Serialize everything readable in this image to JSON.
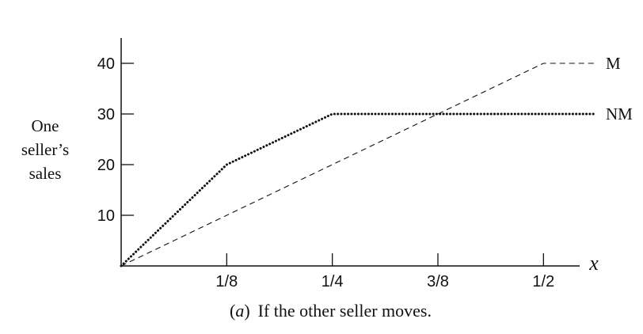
{
  "chart_data": {
    "type": "line",
    "ylabel_lines": [
      "One",
      "seller’s",
      "sales"
    ],
    "xlabel": "x",
    "caption": {
      "prefix": "(",
      "letter": "a",
      "suffix": ")",
      "text": "If the other seller moves."
    },
    "xlim": [
      0,
      0.5625
    ],
    "ylim": [
      0,
      45
    ],
    "x_ticks": [
      {
        "value": 0.125,
        "label": "1/8"
      },
      {
        "value": 0.25,
        "label": "1/4"
      },
      {
        "value": 0.375,
        "label": "3/8"
      },
      {
        "value": 0.5,
        "label": "1/2"
      }
    ],
    "y_ticks": [
      {
        "value": 10,
        "label": "10"
      },
      {
        "value": 20,
        "label": "20"
      },
      {
        "value": 30,
        "label": "30"
      },
      {
        "value": 40,
        "label": "40"
      }
    ],
    "series": [
      {
        "name": "M",
        "style": "dashed",
        "points": [
          [
            0,
            0
          ],
          [
            0.5,
            40
          ],
          [
            0.5625,
            40
          ]
        ]
      },
      {
        "name": "NM",
        "style": "dotted",
        "points": [
          [
            0,
            0
          ],
          [
            0.125,
            20
          ],
          [
            0.25,
            30
          ],
          [
            0.5625,
            30
          ]
        ]
      }
    ],
    "grid": false,
    "colors": {
      "line": "#111111"
    }
  }
}
